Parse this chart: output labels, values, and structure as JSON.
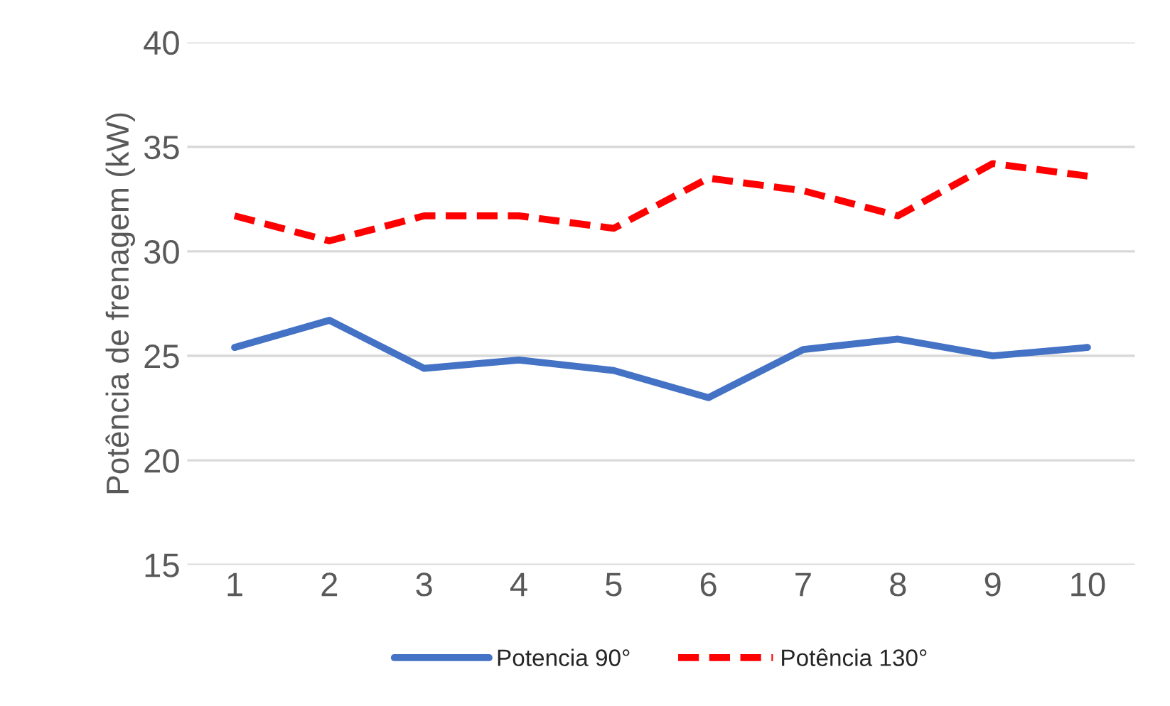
{
  "chart_data": {
    "type": "line",
    "ylabel": "Potência de frenagem (kW)",
    "categories": [
      "1",
      "2",
      "3",
      "4",
      "5",
      "6",
      "7",
      "8",
      "9",
      "10"
    ],
    "series": [
      {
        "name": "Potencia 90°",
        "color": "#4472c4",
        "line_style": "solid",
        "values": [
          25.4,
          26.7,
          24.4,
          24.8,
          24.3,
          23.0,
          25.3,
          25.8,
          25.0,
          25.4
        ]
      },
      {
        "name": "Potência 130°",
        "color": "#ff0000",
        "line_style": "dashed",
        "values": [
          31.7,
          30.5,
          31.7,
          31.7,
          31.1,
          33.5,
          32.9,
          31.7,
          34.2,
          33.6
        ]
      }
    ],
    "ylim": [
      15,
      40
    ],
    "yticks": [
      15,
      20,
      25,
      30,
      35,
      40
    ],
    "grid": "y",
    "legend": "bottom",
    "marker": "none"
  }
}
